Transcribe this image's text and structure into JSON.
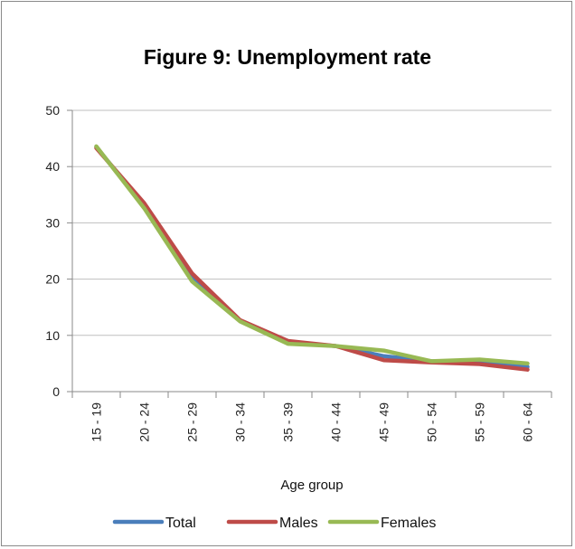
{
  "chart_data": {
    "type": "line",
    "title": "Figure 9: Unemployment rate",
    "xlabel": "Age group",
    "ylabel": "",
    "ylim": [
      0,
      50
    ],
    "yticks": [
      0,
      10,
      20,
      30,
      40,
      50
    ],
    "grid": true,
    "legend_position": "bottom",
    "categories": [
      "15 - 19",
      "20 - 24",
      "25 - 29",
      "30 - 34",
      "35 - 39",
      "40 - 44",
      "45 - 49",
      "50 - 54",
      "55 - 59",
      "60 - 64"
    ],
    "series": [
      {
        "name": "Total",
        "color": "#4a7ebb",
        "values": [
          43.5,
          33.0,
          20.5,
          12.6,
          8.8,
          8.1,
          6.3,
          5.4,
          5.2,
          4.4
        ]
      },
      {
        "name": "Males",
        "color": "#be4b48",
        "values": [
          43.3,
          33.5,
          21.0,
          12.7,
          9.0,
          8.1,
          5.6,
          5.2,
          4.9,
          3.9
        ]
      },
      {
        "name": "Females",
        "color": "#98b954",
        "values": [
          43.6,
          32.6,
          19.6,
          12.5,
          8.5,
          8.1,
          7.3,
          5.4,
          5.7,
          5.0
        ]
      }
    ]
  }
}
